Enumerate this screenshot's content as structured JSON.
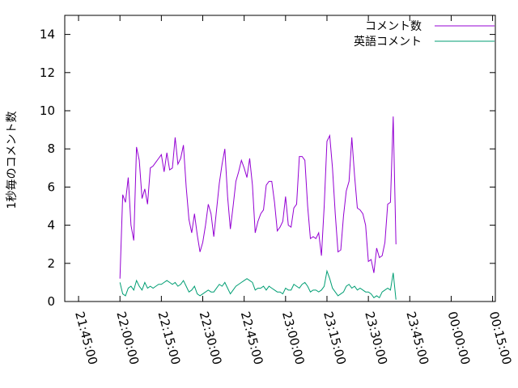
{
  "chart_data": {
    "type": "line",
    "title": "",
    "xlabel": "",
    "ylabel": "1秒毎のコメント数",
    "ylim": [
      0,
      15
    ],
    "yticks": [
      0,
      2,
      4,
      6,
      8,
      10,
      12,
      14
    ],
    "xlim": [
      "21:40:00",
      "00:16:00"
    ],
    "xticks": [
      "21:45:00",
      "22:00:00",
      "22:15:00",
      "22:30:00",
      "22:45:00",
      "23:00:00",
      "23:15:00",
      "23:30:00",
      "23:45:00",
      "00:00:00",
      "00:15:00"
    ],
    "grid": false,
    "legend_position": "top-right",
    "series": [
      {
        "name": "コメント数",
        "color": "#9400d3",
        "points": [
          [
            "22:00:00",
            1.2
          ],
          [
            "22:01:00",
            5.6
          ],
          [
            "22:02:00",
            5.2
          ],
          [
            "22:03:00",
            6.5
          ],
          [
            "22:04:00",
            4.0
          ],
          [
            "22:05:00",
            3.2
          ],
          [
            "22:06:00",
            8.1
          ],
          [
            "22:07:00",
            7.4
          ],
          [
            "22:08:00",
            5.4
          ],
          [
            "22:09:00",
            5.9
          ],
          [
            "22:10:00",
            5.1
          ],
          [
            "22:11:00",
            7.0
          ],
          [
            "22:12:00",
            7.1
          ],
          [
            "22:13:00",
            7.3
          ],
          [
            "22:14:00",
            7.5
          ],
          [
            "22:15:00",
            7.7
          ],
          [
            "22:16:00",
            6.8
          ],
          [
            "22:17:00",
            7.8
          ],
          [
            "22:18:00",
            6.9
          ],
          [
            "22:19:00",
            7.0
          ],
          [
            "22:20:00",
            8.6
          ],
          [
            "22:21:00",
            7.2
          ],
          [
            "22:22:00",
            7.5
          ],
          [
            "22:23:00",
            8.2
          ],
          [
            "22:24:00",
            6.0
          ],
          [
            "22:25:00",
            4.3
          ],
          [
            "22:26:00",
            3.6
          ],
          [
            "22:27:00",
            4.6
          ],
          [
            "22:28:00",
            3.5
          ],
          [
            "22:29:00",
            2.6
          ],
          [
            "22:30:00",
            3.1
          ],
          [
            "22:31:00",
            4.0
          ],
          [
            "22:32:00",
            5.1
          ],
          [
            "22:33:00",
            4.6
          ],
          [
            "22:34:00",
            3.4
          ],
          [
            "22:35:00",
            4.8
          ],
          [
            "22:36:00",
            6.2
          ],
          [
            "22:37:00",
            7.2
          ],
          [
            "22:38:00",
            8.0
          ],
          [
            "22:39:00",
            5.5
          ],
          [
            "22:40:00",
            3.8
          ],
          [
            "22:41:00",
            5.0
          ],
          [
            "22:42:00",
            6.3
          ],
          [
            "22:43:00",
            6.8
          ],
          [
            "22:44:00",
            7.4
          ],
          [
            "22:45:00",
            7.0
          ],
          [
            "22:46:00",
            6.5
          ],
          [
            "22:47:00",
            7.5
          ],
          [
            "22:48:00",
            6.1
          ],
          [
            "22:49:00",
            3.6
          ],
          [
            "22:50:00",
            4.2
          ],
          [
            "22:51:00",
            4.6
          ],
          [
            "22:52:00",
            4.8
          ],
          [
            "22:53:00",
            6.1
          ],
          [
            "22:54:00",
            6.3
          ],
          [
            "22:55:00",
            6.3
          ],
          [
            "22:56:00",
            5.2
          ],
          [
            "22:57:00",
            3.7
          ],
          [
            "22:58:00",
            3.9
          ],
          [
            "22:59:00",
            4.2
          ],
          [
            "23:00:00",
            5.5
          ],
          [
            "23:01:00",
            4.0
          ],
          [
            "23:02:00",
            3.9
          ],
          [
            "23:03:00",
            4.9
          ],
          [
            "23:04:00",
            5.1
          ],
          [
            "23:05:00",
            7.6
          ],
          [
            "23:06:00",
            7.6
          ],
          [
            "23:07:00",
            7.4
          ],
          [
            "23:08:00",
            5.0
          ],
          [
            "23:09:00",
            3.3
          ],
          [
            "23:10:00",
            3.4
          ],
          [
            "23:11:00",
            3.3
          ],
          [
            "23:12:00",
            3.6
          ],
          [
            "23:13:00",
            2.4
          ],
          [
            "23:14:00",
            5.0
          ],
          [
            "23:15:00",
            8.4
          ],
          [
            "23:16:00",
            8.7
          ],
          [
            "23:17:00",
            7.0
          ],
          [
            "23:18:00",
            4.6
          ],
          [
            "23:19:00",
            2.6
          ],
          [
            "23:20:00",
            2.7
          ],
          [
            "23:21:00",
            4.5
          ],
          [
            "23:22:00",
            5.8
          ],
          [
            "23:23:00",
            6.3
          ],
          [
            "23:24:00",
            8.6
          ],
          [
            "23:25:00",
            6.6
          ],
          [
            "23:26:00",
            4.9
          ],
          [
            "23:27:00",
            4.8
          ],
          [
            "23:28:00",
            4.6
          ],
          [
            "23:29:00",
            4.0
          ],
          [
            "23:30:00",
            2.1
          ],
          [
            "23:31:00",
            2.2
          ],
          [
            "23:32:00",
            1.5
          ],
          [
            "23:33:00",
            2.8
          ],
          [
            "23:34:00",
            2.3
          ],
          [
            "23:35:00",
            2.4
          ],
          [
            "23:36:00",
            3.1
          ],
          [
            "23:37:00",
            5.1
          ],
          [
            "23:38:00",
            5.2
          ],
          [
            "23:39:00",
            9.7
          ],
          [
            "23:40:00",
            3.0
          ]
        ]
      },
      {
        "name": "英語コメント",
        "color": "#009e73",
        "points": [
          [
            "22:00:00",
            1.0
          ],
          [
            "22:01:00",
            0.4
          ],
          [
            "22:02:00",
            0.3
          ],
          [
            "22:03:00",
            0.7
          ],
          [
            "22:04:00",
            0.8
          ],
          [
            "22:05:00",
            0.6
          ],
          [
            "22:06:00",
            1.1
          ],
          [
            "22:07:00",
            0.8
          ],
          [
            "22:08:00",
            0.6
          ],
          [
            "22:09:00",
            1.0
          ],
          [
            "22:10:00",
            0.7
          ],
          [
            "22:11:00",
            0.8
          ],
          [
            "22:12:00",
            0.7
          ],
          [
            "22:13:00",
            0.8
          ],
          [
            "22:14:00",
            0.9
          ],
          [
            "22:15:00",
            0.9
          ],
          [
            "22:16:00",
            1.0
          ],
          [
            "22:17:00",
            1.1
          ],
          [
            "22:18:00",
            1.0
          ],
          [
            "22:19:00",
            0.9
          ],
          [
            "22:20:00",
            1.0
          ],
          [
            "22:21:00",
            0.8
          ],
          [
            "22:22:00",
            0.9
          ],
          [
            "22:23:00",
            1.1
          ],
          [
            "22:24:00",
            0.8
          ],
          [
            "22:25:00",
            0.5
          ],
          [
            "22:26:00",
            0.6
          ],
          [
            "22:27:00",
            0.8
          ],
          [
            "22:28:00",
            0.4
          ],
          [
            "22:29:00",
            0.3
          ],
          [
            "22:30:00",
            0.4
          ],
          [
            "22:31:00",
            0.5
          ],
          [
            "22:32:00",
            0.6
          ],
          [
            "22:33:00",
            0.5
          ],
          [
            "22:34:00",
            0.5
          ],
          [
            "22:35:00",
            0.7
          ],
          [
            "22:36:00",
            0.9
          ],
          [
            "22:37:00",
            0.8
          ],
          [
            "22:38:00",
            1.0
          ],
          [
            "22:39:00",
            0.7
          ],
          [
            "22:40:00",
            0.4
          ],
          [
            "22:41:00",
            0.6
          ],
          [
            "22:42:00",
            0.8
          ],
          [
            "22:43:00",
            0.9
          ],
          [
            "22:44:00",
            1.0
          ],
          [
            "22:45:00",
            1.1
          ],
          [
            "22:46:00",
            1.2
          ],
          [
            "22:47:00",
            1.1
          ],
          [
            "22:48:00",
            1.0
          ],
          [
            "22:49:00",
            0.6
          ],
          [
            "22:50:00",
            0.7
          ],
          [
            "22:51:00",
            0.7
          ],
          [
            "22:52:00",
            0.8
          ],
          [
            "22:53:00",
            0.6
          ],
          [
            "22:54:00",
            0.8
          ],
          [
            "22:55:00",
            0.7
          ],
          [
            "22:56:00",
            0.6
          ],
          [
            "22:57:00",
            0.5
          ],
          [
            "22:58:00",
            0.5
          ],
          [
            "22:59:00",
            0.4
          ],
          [
            "23:00:00",
            0.7
          ],
          [
            "23:01:00",
            0.6
          ],
          [
            "23:02:00",
            0.6
          ],
          [
            "23:03:00",
            0.9
          ],
          [
            "23:04:00",
            0.8
          ],
          [
            "23:05:00",
            0.7
          ],
          [
            "23:06:00",
            0.9
          ],
          [
            "23:07:00",
            1.0
          ],
          [
            "23:08:00",
            0.8
          ],
          [
            "23:09:00",
            0.5
          ],
          [
            "23:10:00",
            0.6
          ],
          [
            "23:11:00",
            0.6
          ],
          [
            "23:12:00",
            0.5
          ],
          [
            "23:13:00",
            0.6
          ],
          [
            "23:14:00",
            0.8
          ],
          [
            "23:15:00",
            1.6
          ],
          [
            "23:16:00",
            1.2
          ],
          [
            "23:17:00",
            0.7
          ],
          [
            "23:18:00",
            0.5
          ],
          [
            "23:19:00",
            0.3
          ],
          [
            "23:20:00",
            0.4
          ],
          [
            "23:21:00",
            0.5
          ],
          [
            "23:22:00",
            0.8
          ],
          [
            "23:23:00",
            0.9
          ],
          [
            "23:24:00",
            0.7
          ],
          [
            "23:25:00",
            0.8
          ],
          [
            "23:26:00",
            0.6
          ],
          [
            "23:27:00",
            0.7
          ],
          [
            "23:28:00",
            0.6
          ],
          [
            "23:29:00",
            0.5
          ],
          [
            "23:30:00",
            0.5
          ],
          [
            "23:31:00",
            0.4
          ],
          [
            "23:32:00",
            0.2
          ],
          [
            "23:33:00",
            0.3
          ],
          [
            "23:34:00",
            0.2
          ],
          [
            "23:35:00",
            0.5
          ],
          [
            "23:36:00",
            0.6
          ],
          [
            "23:37:00",
            0.7
          ],
          [
            "23:38:00",
            0.6
          ],
          [
            "23:39:00",
            1.5
          ],
          [
            "23:40:00",
            0.1
          ]
        ]
      }
    ]
  }
}
